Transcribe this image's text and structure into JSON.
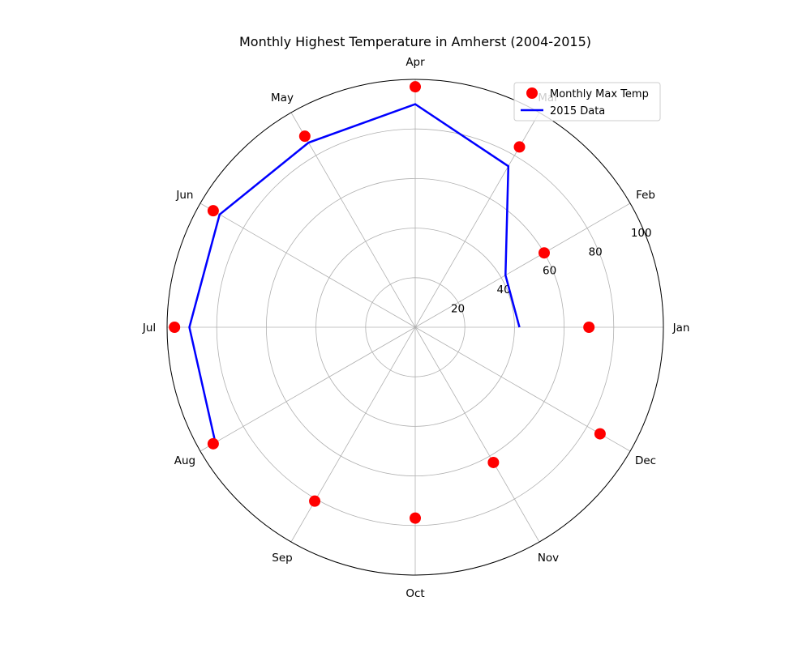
{
  "chart_data": {
    "type": "polar",
    "title": "Monthly Highest Temperature in Amherst (2004-2015)",
    "angular_ticks": [
      "Jan",
      "Feb",
      "Mar",
      "Apr",
      "May",
      "Jun",
      "Jul",
      "Aug",
      "Sep",
      "Oct",
      "Nov",
      "Dec"
    ],
    "radial_ticks": [
      20,
      40,
      60,
      80,
      100
    ],
    "rlim": [
      0,
      100
    ],
    "grid": true,
    "legend": "upper-right",
    "series": [
      {
        "name": "Monthly Max Temp",
        "kind": "scatter",
        "color": "#ff0000",
        "categories": [
          "Jan",
          "Feb",
          "Mar",
          "Apr",
          "May",
          "Jun",
          "Jul",
          "Aug",
          "Sep",
          "Oct",
          "Nov",
          "Dec"
        ],
        "values": [
          70,
          60,
          84,
          97,
          89,
          94,
          97,
          94,
          81,
          77,
          63,
          86
        ]
      },
      {
        "name": "2015 Data",
        "kind": "line",
        "color": "#0000ff",
        "categories": [
          "Jan",
          "Feb",
          "Mar",
          "Apr",
          "May",
          "Jun",
          "Jul",
          "Aug"
        ],
        "values": [
          42,
          42,
          75,
          90,
          86,
          91,
          91,
          93
        ]
      }
    ]
  }
}
